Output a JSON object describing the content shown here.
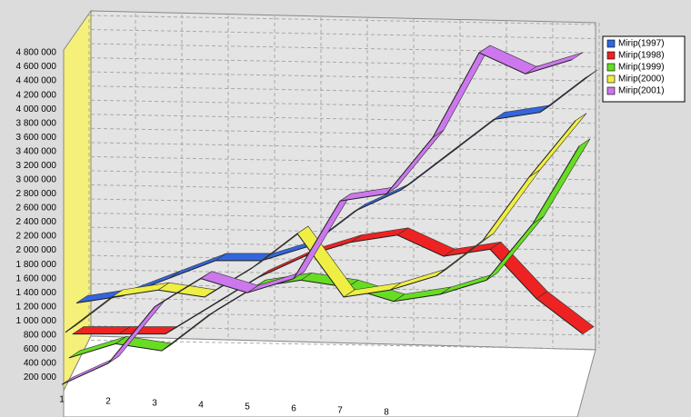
{
  "chart_data": {
    "type": "line3d",
    "categories": [
      "1",
      "2",
      "3",
      "4",
      "5",
      "6",
      "7",
      "8",
      null,
      null,
      null,
      null
    ],
    "series": [
      {
        "name": "Mirip(1997)",
        "color": "#3366dd",
        "values": [
          1100000,
          1200000,
          1450000,
          1700000,
          1700000,
          1900000,
          2400000,
          2700000,
          3200000,
          3700000,
          3800000,
          4300000
        ]
      },
      {
        "name": "Mirip(1998)",
        "color": "#ee2222",
        "values": [
          700000,
          700000,
          700000,
          1100000,
          1500000,
          1800000,
          2000000,
          2100000,
          1800000,
          1900000,
          1200000,
          700000
        ]
      },
      {
        "name": "Mirip(1999)",
        "color": "#66dd22",
        "values": [
          400000,
          600000,
          500000,
          1000000,
          1400000,
          1500000,
          1400000,
          1200000,
          1300000,
          1500000,
          2300000,
          3400000
        ]
      },
      {
        "name": "Mirip(2000)",
        "color": "#eeee44",
        "values": [
          800000,
          1300000,
          1400000,
          1300000,
          1700000,
          2200000,
          1300000,
          1400000,
          1600000,
          2100000,
          3000000,
          3800000
        ]
      },
      {
        "name": "Mirip(2001)",
        "color": "#cc77ee",
        "values": [
          100000,
          400000,
          1200000,
          1600000,
          1400000,
          1600000,
          2700000,
          2800000,
          3600000,
          4800000,
          4500000,
          4700000
        ]
      }
    ],
    "ylim": [
      0,
      4800000
    ],
    "yticks": [
      {
        "value": 200000,
        "label": "200 000"
      },
      {
        "value": 400000,
        "label": "400 000"
      },
      {
        "value": 600000,
        "label": "600 000"
      },
      {
        "value": 800000,
        "label": "800 000"
      },
      {
        "value": 1000000,
        "label": "1 000 000"
      },
      {
        "value": 1200000,
        "label": "1 200 000"
      },
      {
        "value": 1400000,
        "label": "1 400 000"
      },
      {
        "value": 1600000,
        "label": "1 600 000"
      },
      {
        "value": 1800000,
        "label": "1 800 000"
      },
      {
        "value": 2000000,
        "label": "2 000 000"
      },
      {
        "value": 2200000,
        "label": "2 200 000"
      },
      {
        "value": 2400000,
        "label": "2 400 000"
      },
      {
        "value": 2600000,
        "label": "2 600 000"
      },
      {
        "value": 2800000,
        "label": "2 800 000"
      },
      {
        "value": 3000000,
        "label": "3 000 000"
      },
      {
        "value": 3200000,
        "label": "3 200 000"
      },
      {
        "value": 3400000,
        "label": "3 400 000"
      },
      {
        "value": 3600000,
        "label": "3 600 000"
      },
      {
        "value": 3800000,
        "label": "3 800 000"
      },
      {
        "value": 4000000,
        "label": "4 000 000"
      },
      {
        "value": 4200000,
        "label": "4 200 000"
      },
      {
        "value": 4400000,
        "label": "4 400 000"
      },
      {
        "value": 4600000,
        "label": "4 600 000"
      },
      {
        "value": 4800000,
        "label": "4 800 000"
      }
    ],
    "grid": true,
    "legend": "top-right"
  }
}
